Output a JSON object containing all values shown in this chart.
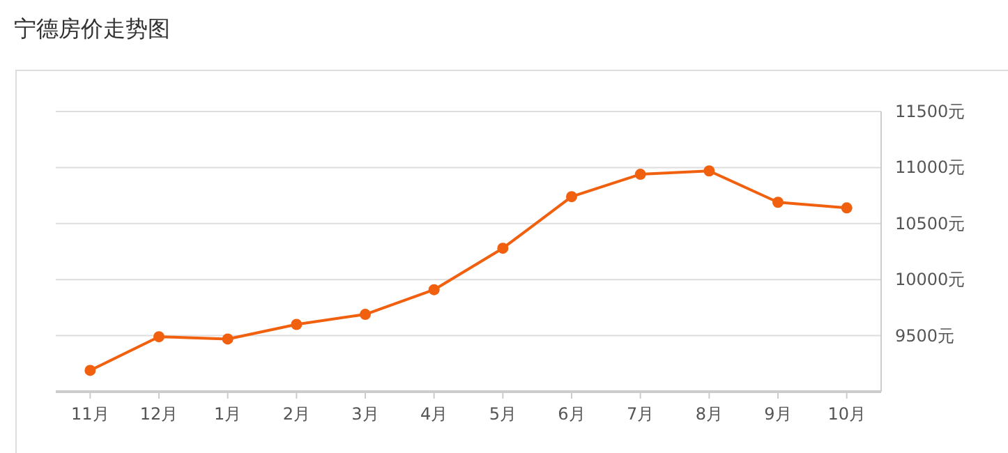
{
  "chart_data": {
    "type": "line",
    "title": "宁德房价走势图",
    "categories": [
      "11月",
      "12月",
      "1月",
      "2月",
      "3月",
      "4月",
      "5月",
      "6月",
      "7月",
      "8月",
      "9月",
      "10月"
    ],
    "series": [
      {
        "color": "#f0600f",
        "values": [
          9190,
          9490,
          9470,
          9600,
          9690,
          9910,
          10280,
          10740,
          10940,
          10970,
          10690,
          10640
        ]
      }
    ],
    "ylim": [
      9000,
      11500
    ],
    "yticks": [
      {
        "value": 9000,
        "label": null
      },
      {
        "value": 9500,
        "label": "9500元"
      },
      {
        "value": 10000,
        "label": "10000元"
      },
      {
        "value": 10500,
        "label": "10500元"
      },
      {
        "value": 11000,
        "label": "11000元"
      },
      {
        "value": 11500,
        "label": "11500元"
      }
    ],
    "grid": "y",
    "marker": "circle",
    "line_style": "solid"
  }
}
